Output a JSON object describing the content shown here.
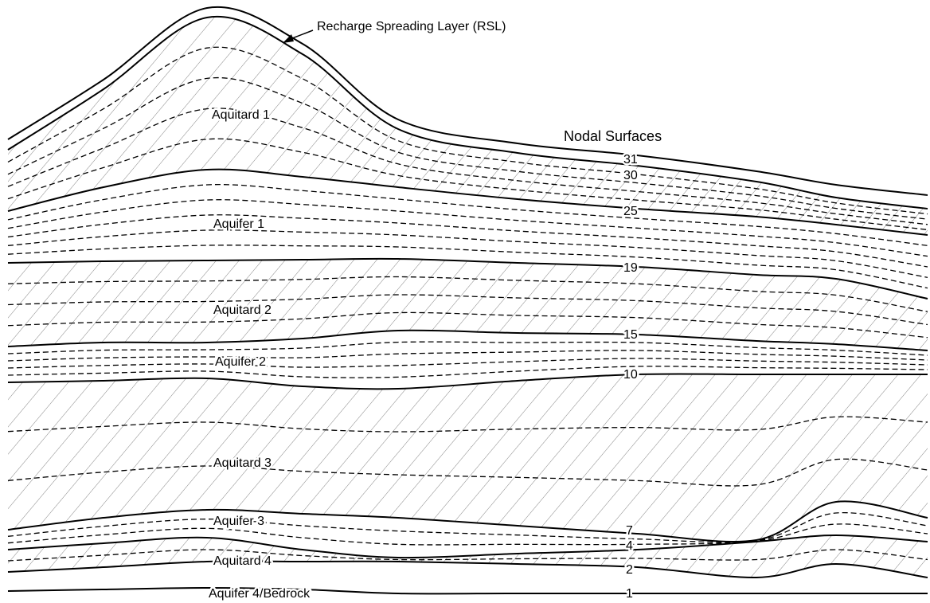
{
  "callout": {
    "label": "Recharge Spreading Layer (RSL)"
  },
  "legend_title": "Nodal Surfaces",
  "layers": [
    {
      "label": "Aquitard 1"
    },
    {
      "label": "Aquifer 1"
    },
    {
      "label": "Aquitard 2"
    },
    {
      "label": "Aquifer 2"
    },
    {
      "label": "Aquitard 3"
    },
    {
      "label": "Aquifer 3"
    },
    {
      "label": "Aquitard 4"
    },
    {
      "label": "Aquifer 4/Bedrock"
    }
  ],
  "surfaces": [
    {
      "label": "31"
    },
    {
      "label": "30"
    },
    {
      "label": "25"
    },
    {
      "label": "19"
    },
    {
      "label": "15"
    },
    {
      "label": "10"
    },
    {
      "label": "7"
    },
    {
      "label": "4"
    },
    {
      "label": "2"
    },
    {
      "label": "1"
    }
  ]
}
